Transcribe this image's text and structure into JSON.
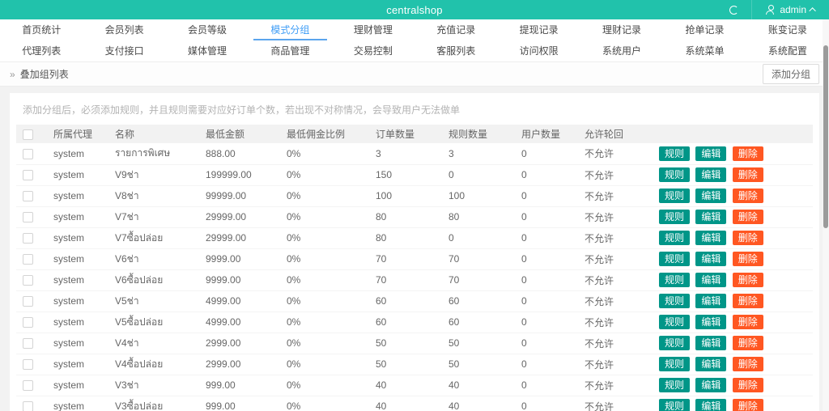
{
  "colors": {
    "topbar_teal": "#21c2ab",
    "active_tab_blue": "#3e9df6",
    "button_teal": "#009688",
    "button_orange": "#ff5722"
  },
  "topbar": {
    "title": "centralshop",
    "user_name": "admin"
  },
  "nav": {
    "row1": [
      {
        "label": "首页统计"
      },
      {
        "label": "会员列表"
      },
      {
        "label": "会员等级"
      },
      {
        "label": "模式分组",
        "active": true
      },
      {
        "label": "理财管理"
      },
      {
        "label": "充值记录"
      },
      {
        "label": "提现记录"
      },
      {
        "label": "理财记录"
      },
      {
        "label": "抢单记录"
      },
      {
        "label": "账变记录"
      }
    ],
    "row2": [
      {
        "label": "代理列表"
      },
      {
        "label": "支付接口"
      },
      {
        "label": "媒体管理"
      },
      {
        "label": "商品管理"
      },
      {
        "label": "交易控制"
      },
      {
        "label": "客服列表"
      },
      {
        "label": "访问权限"
      },
      {
        "label": "系统用户"
      },
      {
        "label": "系统菜单"
      },
      {
        "label": "系统配置"
      }
    ]
  },
  "page": {
    "breadcrumb_marker": "»",
    "breadcrumb": "叠加组列表",
    "add_button": "添加分组",
    "hint": "添加分组后，必须添加规则，并且规则需要对应好订单个数，若出现不对称情况，会导致用户无法做单"
  },
  "table": {
    "headers": [
      "所属代理",
      "名称",
      "最低金额",
      "最低佣金比例",
      "订单数量",
      "规则数量",
      "用户数量",
      "允许轮回"
    ],
    "action_labels": {
      "rule": "规则",
      "edit": "编辑",
      "delete": "删除"
    },
    "rows": [
      {
        "agent": "system",
        "name": "รายการพิเศษ",
        "min_amount": "888.00",
        "commission": "0%",
        "orders": "3",
        "rules": "3",
        "users": "0",
        "rotation": "不允许"
      },
      {
        "agent": "system",
        "name": "V9ช่า",
        "min_amount": "199999.00",
        "commission": "0%",
        "orders": "150",
        "rules": "0",
        "users": "0",
        "rotation": "不允许"
      },
      {
        "agent": "system",
        "name": "V8ช่า",
        "min_amount": "99999.00",
        "commission": "0%",
        "orders": "100",
        "rules": "100",
        "users": "0",
        "rotation": "不允许"
      },
      {
        "agent": "system",
        "name": "V7ช่า",
        "min_amount": "29999.00",
        "commission": "0%",
        "orders": "80",
        "rules": "80",
        "users": "0",
        "rotation": "不允许"
      },
      {
        "agent": "system",
        "name": "V7ซื้อปล่อย",
        "min_amount": "29999.00",
        "commission": "0%",
        "orders": "80",
        "rules": "0",
        "users": "0",
        "rotation": "不允许"
      },
      {
        "agent": "system",
        "name": "V6ช่า",
        "min_amount": "9999.00",
        "commission": "0%",
        "orders": "70",
        "rules": "70",
        "users": "0",
        "rotation": "不允许"
      },
      {
        "agent": "system",
        "name": "V6ซื้อปล่อย",
        "min_amount": "9999.00",
        "commission": "0%",
        "orders": "70",
        "rules": "70",
        "users": "0",
        "rotation": "不允许"
      },
      {
        "agent": "system",
        "name": "V5ช่า",
        "min_amount": "4999.00",
        "commission": "0%",
        "orders": "60",
        "rules": "60",
        "users": "0",
        "rotation": "不允许"
      },
      {
        "agent": "system",
        "name": "V5ซื้อปล่อย",
        "min_amount": "4999.00",
        "commission": "0%",
        "orders": "60",
        "rules": "60",
        "users": "0",
        "rotation": "不允许"
      },
      {
        "agent": "system",
        "name": "V4ช่า",
        "min_amount": "2999.00",
        "commission": "0%",
        "orders": "50",
        "rules": "50",
        "users": "0",
        "rotation": "不允许"
      },
      {
        "agent": "system",
        "name": "V4ซื้อปล่อย",
        "min_amount": "2999.00",
        "commission": "0%",
        "orders": "50",
        "rules": "50",
        "users": "0",
        "rotation": "不允许"
      },
      {
        "agent": "system",
        "name": "V3ช่า",
        "min_amount": "999.00",
        "commission": "0%",
        "orders": "40",
        "rules": "40",
        "users": "0",
        "rotation": "不允许"
      },
      {
        "agent": "system",
        "name": "V3ซื้อปล่อย",
        "min_amount": "999.00",
        "commission": "0%",
        "orders": "40",
        "rules": "40",
        "users": "0",
        "rotation": "不允许"
      }
    ]
  }
}
